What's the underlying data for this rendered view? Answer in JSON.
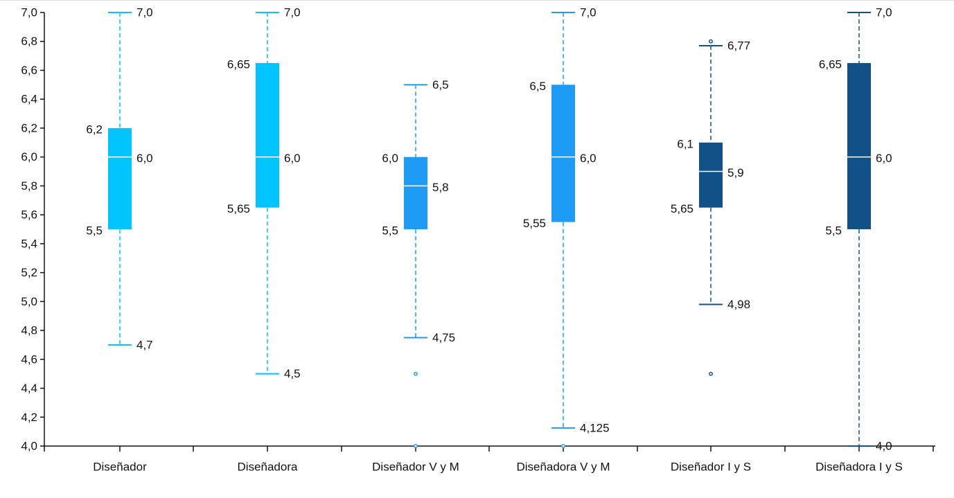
{
  "chart_data": {
    "type": "boxplot",
    "ylim": [
      4.0,
      7.0
    ],
    "yticks": [
      {
        "value": 4.0,
        "label": "4,0"
      },
      {
        "value": 4.2,
        "label": "4,2"
      },
      {
        "value": 4.4,
        "label": "4,4"
      },
      {
        "value": 4.6,
        "label": "4,6"
      },
      {
        "value": 4.8,
        "label": "4,8"
      },
      {
        "value": 5.0,
        "label": "5,0"
      },
      {
        "value": 5.2,
        "label": "5,2"
      },
      {
        "value": 5.4,
        "label": "5,4"
      },
      {
        "value": 5.6,
        "label": "5,6"
      },
      {
        "value": 5.8,
        "label": "5,8"
      },
      {
        "value": 6.0,
        "label": "6,0"
      },
      {
        "value": 6.2,
        "label": "6,2"
      },
      {
        "value": 6.4,
        "label": "6,4"
      },
      {
        "value": 6.6,
        "label": "6,6"
      },
      {
        "value": 6.8,
        "label": "6,8"
      },
      {
        "value": 7.0,
        "label": "7,0"
      }
    ],
    "grid": false,
    "categories": [
      "Diseñador",
      "Diseñadora",
      "Diseñador V y M",
      "Diseñadora V y M",
      "Diseñador I y S",
      "Diseñadora I y S"
    ],
    "boxes": [
      {
        "category": "Diseñador",
        "min": 4.7,
        "q1": 5.5,
        "median": 6.0,
        "q3": 6.2,
        "max": 7.0,
        "labels": {
          "min": "4,7",
          "q1": "5,5",
          "median": "6,0",
          "q3": "6,2",
          "max": "7,0"
        },
        "outliers": [],
        "color": "#00c3ff"
      },
      {
        "category": "Diseñadora",
        "min": 4.5,
        "q1": 5.65,
        "median": 6.0,
        "q3": 6.65,
        "max": 7.0,
        "labels": {
          "min": "4,5",
          "q1": "5,65",
          "median": "6,0",
          "q3": "6,65",
          "max": "7,0"
        },
        "outliers": [],
        "color": "#00c3ff"
      },
      {
        "category": "Diseñador V y M",
        "min": 4.75,
        "q1": 5.5,
        "median": 5.8,
        "q3": 6.0,
        "max": 6.5,
        "labels": {
          "min": "4,75",
          "q1": "5,5",
          "median": "5,8",
          "q3": "6,0",
          "max": "6,5"
        },
        "outliers": [
          4.5,
          4.0
        ],
        "color": "#1e9bf5"
      },
      {
        "category": "Diseñadora V y M",
        "min": 4.125,
        "q1": 5.55,
        "median": 6.0,
        "q3": 6.5,
        "max": 7.0,
        "labels": {
          "min": "4,125",
          "q1": "5,55",
          "median": "6,0",
          "q3": "6,5",
          "max": "7,0"
        },
        "outliers": [
          4.0
        ],
        "color": "#1e9bf5"
      },
      {
        "category": "Diseñador I y S",
        "min": 4.98,
        "q1": 5.65,
        "median": 5.9,
        "q3": 6.1,
        "max": 6.77,
        "labels": {
          "min": "4,98",
          "q1": "5,65",
          "median": "5,9",
          "q3": "6,1",
          "max": "6,77"
        },
        "outliers": [
          6.8,
          4.5
        ],
        "color": "#125088"
      },
      {
        "category": "Diseñadora I y S",
        "min": 4.0,
        "q1": 5.5,
        "median": 6.0,
        "q3": 6.65,
        "max": 7.0,
        "labels": {
          "min": "4,0",
          "q1": "5,5",
          "median": "6,0",
          "q3": "6,65",
          "max": "7,0"
        },
        "outliers": [],
        "color": "#125088"
      }
    ]
  }
}
